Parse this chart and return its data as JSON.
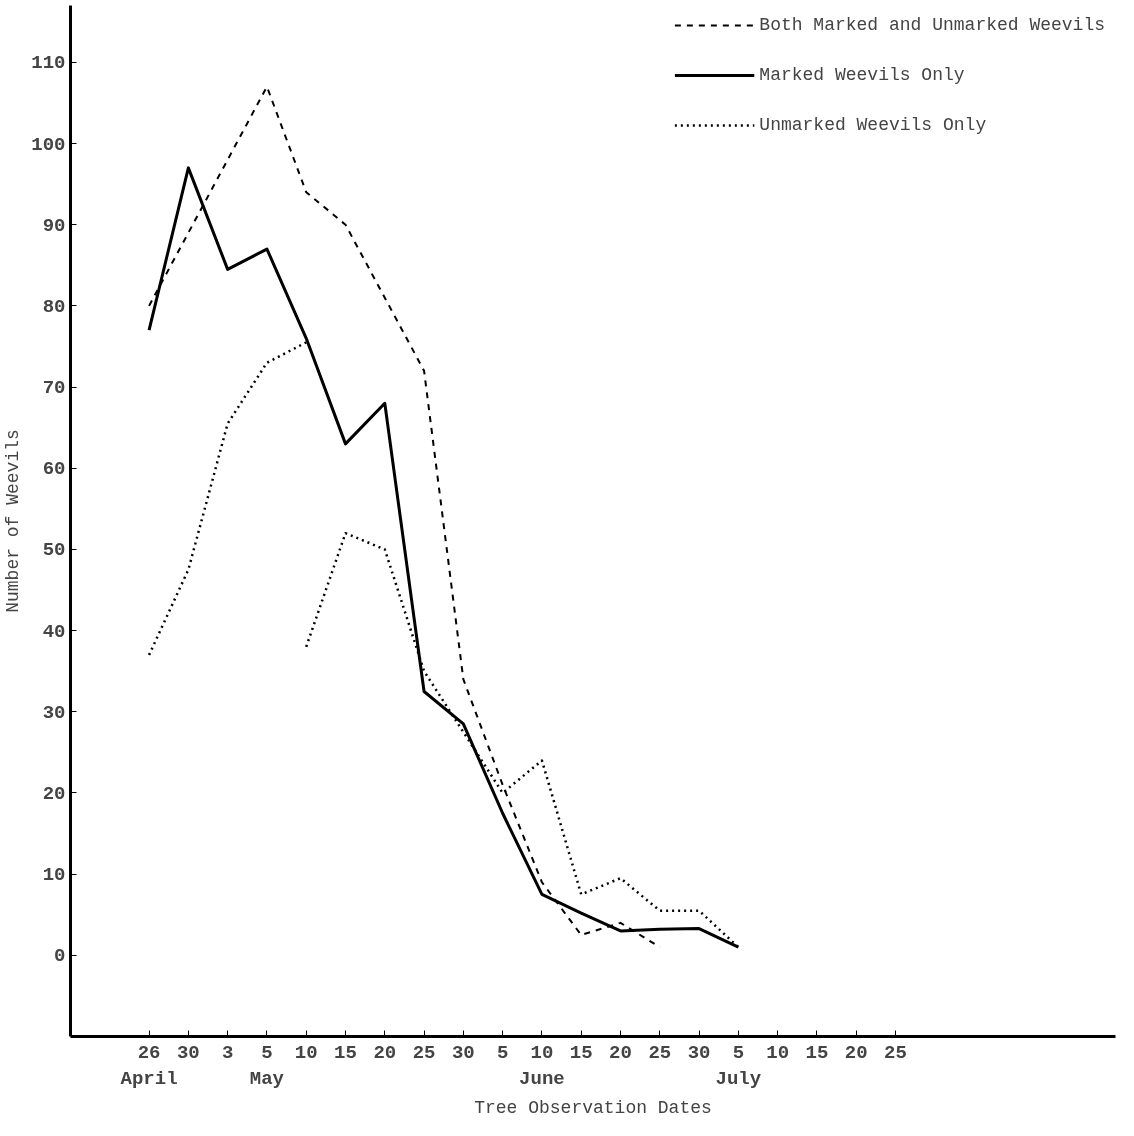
{
  "chart_data": {
    "type": "line",
    "xlabel": "Tree Observation Dates",
    "ylabel": "Number of Weevils",
    "categories": [
      "26\nApril",
      "30",
      "3",
      "5\nMay",
      "10",
      "15",
      "20",
      "25",
      "30",
      "5",
      "10\nJune",
      "15",
      "20",
      "25",
      "30",
      "5\nJuly",
      "10",
      "15",
      "20",
      "25"
    ],
    "ylim": [
      -10,
      117
    ],
    "yticks": [
      0,
      10,
      20,
      30,
      40,
      50,
      60,
      70,
      80,
      90,
      100,
      110
    ],
    "grid": false,
    "legend": "top right",
    "series": [
      {
        "name": "Both Marked and Unmarked Weevils",
        "color": "#000000",
        "line_style": "dashed",
        "values": [
          80,
          89,
          98,
          107,
          94,
          90,
          81,
          72,
          34,
          21,
          9,
          2.5,
          4,
          1,
          null,
          null,
          null,
          null,
          null,
          null
        ]
      },
      {
        "name": "Marked Weevils Only",
        "color": "#000000",
        "line_style": "solid",
        "values": [
          77,
          97,
          84.5,
          87,
          76,
          63,
          68,
          32.5,
          28.5,
          17.5,
          7.5,
          5.2,
          3,
          3.2,
          3.3,
          1,
          null,
          null,
          null,
          null
        ]
      },
      {
        "name": "Unmarked Weevils Only",
        "color": "#000000",
        "line_style": "dotted",
        "values": [
          37,
          47.5,
          65.5,
          73,
          75.5,
          null,
          null,
          null,
          null,
          null,
          null,
          null,
          null,
          null,
          null,
          null,
          null,
          null,
          null,
          null
        ]
      },
      {
        "color": "#000000",
        "line_style": "dotted",
        "values": [
          null,
          null,
          null,
          null,
          38,
          52,
          50,
          35,
          27.5,
          20,
          24,
          7.5,
          9.5,
          5.5,
          5.5,
          1,
          null,
          null,
          null,
          null
        ]
      }
    ]
  }
}
